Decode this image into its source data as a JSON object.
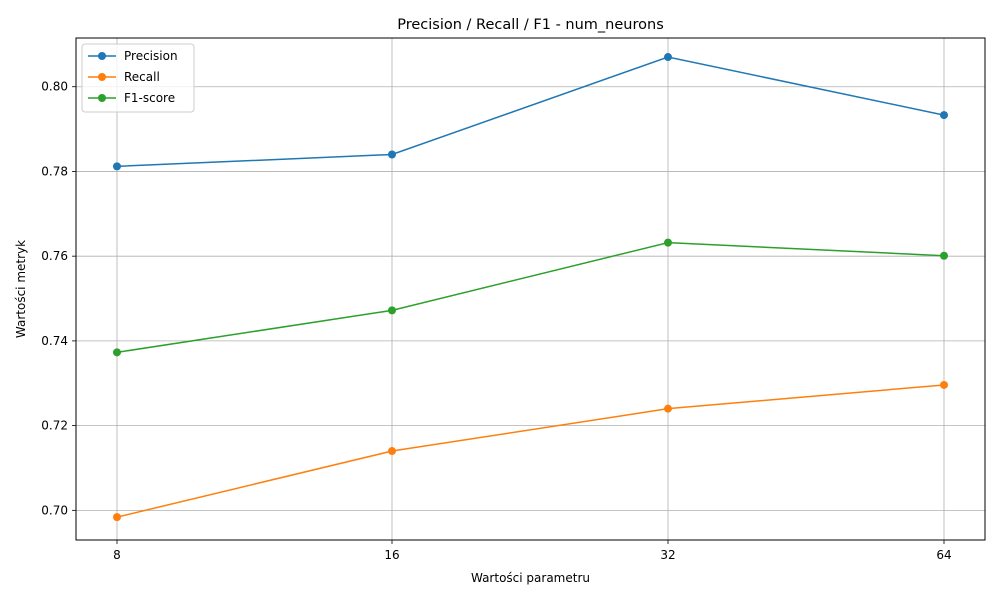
{
  "chart_data": {
    "type": "line",
    "title": "Precision / Recall / F1 - num_neurons",
    "xlabel": "Wartości parametru",
    "ylabel": "Wartości metryk",
    "categories": [
      "8",
      "16",
      "32",
      "64"
    ],
    "ylim": [
      0.693,
      0.8115
    ],
    "yticks": [
      "0.70",
      "0.72",
      "0.74",
      "0.76",
      "0.78",
      "0.80"
    ],
    "grid": true,
    "legend_position": "top-left",
    "series": [
      {
        "name": "Precision",
        "color": "#1f77b4",
        "values": [
          0.7812,
          0.784,
          0.807,
          0.7933
        ]
      },
      {
        "name": "Recall",
        "color": "#ff7f0e",
        "values": [
          0.6984,
          0.714,
          0.724,
          0.7296
        ]
      },
      {
        "name": "F1-score",
        "color": "#2ca02c",
        "values": [
          0.7373,
          0.7472,
          0.7632,
          0.7601
        ]
      }
    ]
  }
}
